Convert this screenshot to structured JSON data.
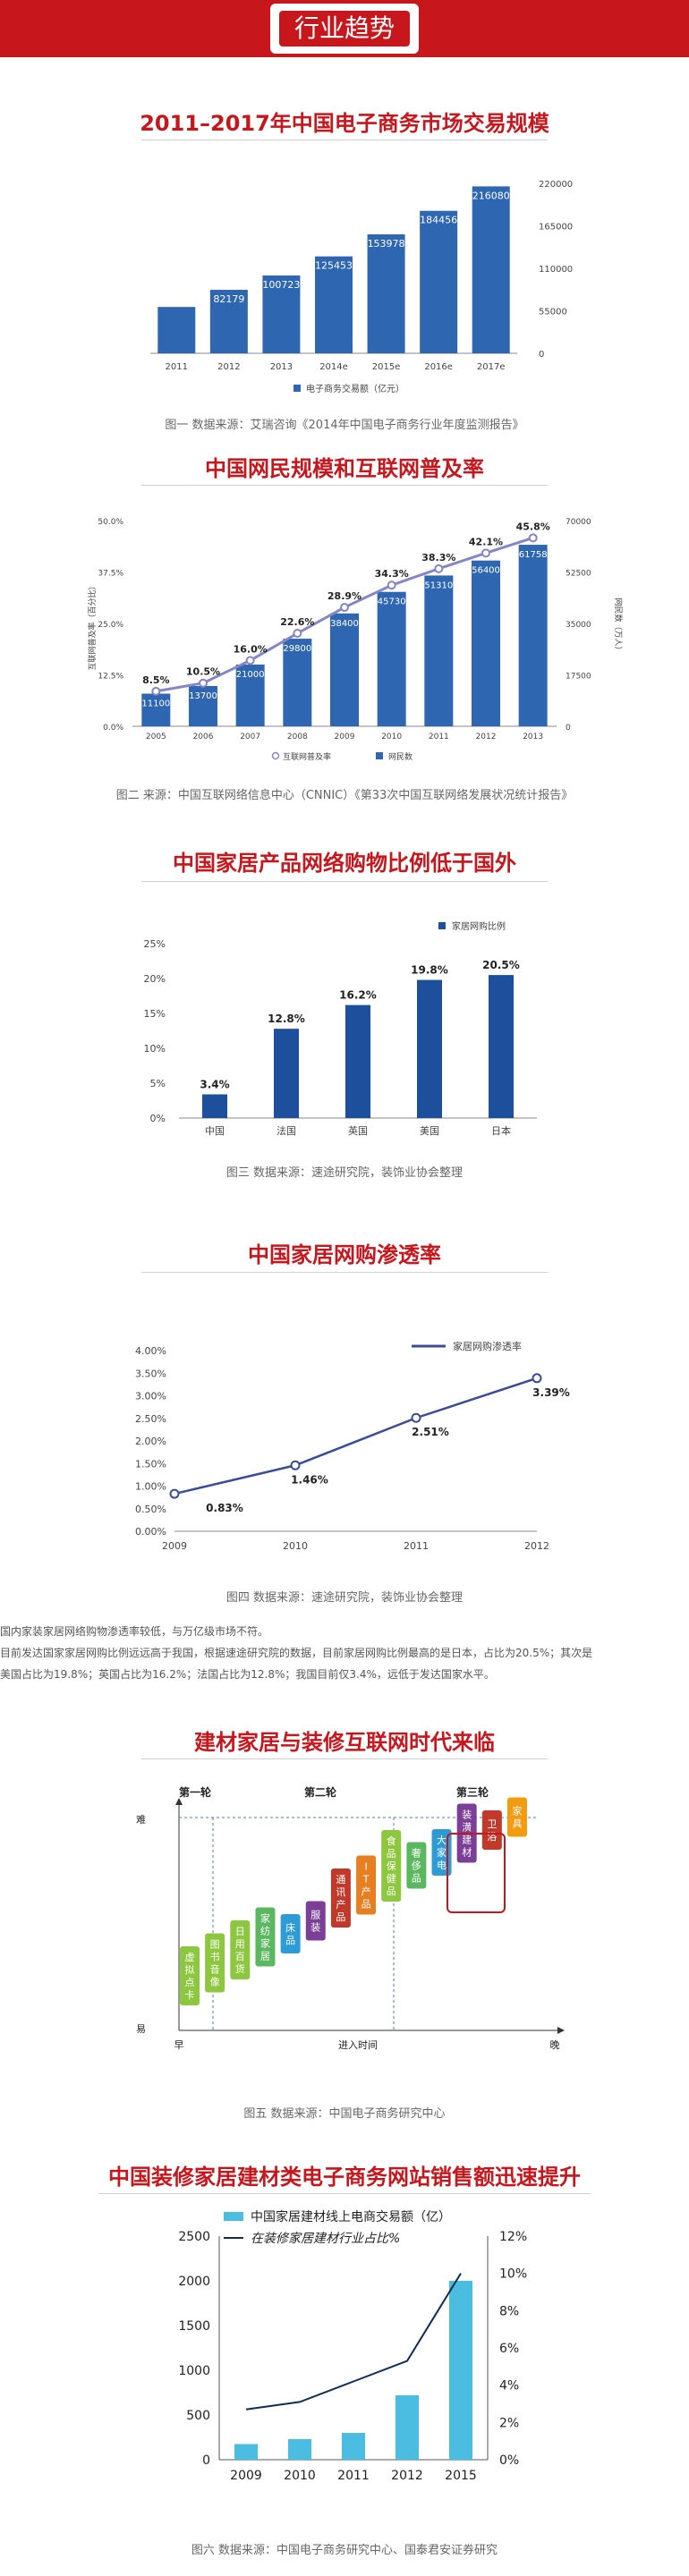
{
  "header": {
    "title": "行业趋势"
  },
  "sections": [
    {
      "title": "2011–2017年中国电子商务市场交易规模",
      "caption": "图一  数据来源：艾瑞咨询《2014年中国电子商务行业年度监测报告》"
    },
    {
      "title": "中国网民规模和互联网普及率",
      "caption": "图二  来源：中国互联网络信息中心（CNNIC）《第33次中国互联网络发展状况统计报告》"
    },
    {
      "title": "中国家居产品网络购物比例低于国外",
      "caption": "图三  数据来源：速途研究院，装饰业协会整理"
    },
    {
      "title": "中国家居网购渗透率",
      "caption": "图四  数据来源：速途研究院，装饰业协会整理"
    },
    {
      "title": "建材家居与装修互联网时代来临",
      "caption": "图五  数据来源：中国电子商务研究中心"
    },
    {
      "title": "中国装修家居建材类电子商务网站销售额迅速提升",
      "caption": "图六  数据来源：中国电子商务研究中心、国泰君安证券研究"
    }
  ],
  "paragraphs": [
    "国内家装家居网络购物渗透率较低，与万亿级市场不符。",
    "目前发达国家家居网购比例远远高于我国，根据速途研究院的数据，目前家居网购比例最高的是日本，占比为20.5%；其次是",
    "美国占比为19.8%；英国占比为16.2%；法国占比为12.8%；我国目前仅3.4%，远低于发达国家水平。"
  ],
  "chart_data": [
    {
      "type": "bar",
      "categories": [
        "2011",
        "2012",
        "2013",
        "2014e",
        "2015e",
        "2016e",
        "2017e"
      ],
      "values": [
        60000,
        82179,
        100723,
        125453,
        153978,
        184456,
        216080
      ],
      "data_labels": [
        "",
        "82179",
        "100723",
        "125453",
        "153978",
        "184456",
        "216080"
      ],
      "ylim": [
        0,
        220000
      ],
      "yticks": [
        "220000",
        "165000",
        "110000",
        "55000",
        "0"
      ],
      "legend": "电子商务交易额（亿元）",
      "color": "#2f66b1"
    },
    {
      "type": "bar",
      "categories": [
        "2005",
        "2006",
        "2007",
        "2008",
        "2009",
        "2010",
        "2011",
        "2012",
        "2013"
      ],
      "series": [
        {
          "name": "网民数",
          "values": [
            11100,
            13700,
            21000,
            29800,
            38400,
            45730,
            51310,
            56400,
            61758
          ],
          "data_labels": [
            "11100",
            "13700",
            "21000",
            "29800",
            "38400",
            "45730",
            "51310",
            "56400",
            "61758"
          ],
          "color": "#2f66b1"
        },
        {
          "name": "互联网普及率",
          "values": [
            8.5,
            10.5,
            16.0,
            22.6,
            28.9,
            34.3,
            38.3,
            42.1,
            45.8
          ],
          "data_labels": [
            "8.5%",
            "10.5%",
            "16.0%",
            "22.6%",
            "28.9%",
            "34.3%",
            "38.3%",
            "42.1%",
            "45.8%"
          ],
          "color": "#8585c9"
        }
      ],
      "y_left_label": "互联网普及率（百分比）",
      "y_left_ticks": [
        "50.0%",
        "37.5%",
        "25.0%",
        "12.5%",
        "0.0%"
      ],
      "y_right_label": "网民数（万人）",
      "y_right_ticks": [
        "70000",
        "52500",
        "35000",
        "17500",
        "0"
      ],
      "y_left_lim": [
        0,
        50
      ],
      "y_right_lim": [
        0,
        70000
      ]
    },
    {
      "type": "bar",
      "categories": [
        "中国",
        "法国",
        "英国",
        "美国",
        "日本"
      ],
      "values": [
        3.4,
        12.8,
        16.2,
        19.8,
        20.5
      ],
      "data_labels": [
        "3.4%",
        "12.8%",
        "16.2%",
        "19.8%",
        "20.5%"
      ],
      "ylim": [
        0,
        25
      ],
      "yticks": [
        "25%",
        "20%",
        "15%",
        "10%",
        "5%",
        "0%"
      ],
      "legend": "家居网购比例",
      "color": "#1e4f9c"
    },
    {
      "type": "line",
      "x": [
        "2009",
        "2010",
        "2011",
        "2012"
      ],
      "values": [
        0.83,
        1.46,
        2.51,
        3.39
      ],
      "data_labels": [
        "0.83%",
        "1.46%",
        "2.51%",
        "3.39%"
      ],
      "ylim": [
        0,
        4
      ],
      "yticks": [
        "4.00%",
        "3.50%",
        "3.00%",
        "2.50%",
        "2.00%",
        "1.50%",
        "1.00%",
        "0.50%",
        "0.00%"
      ],
      "legend": "家居网购渗透率",
      "color": "#3b4a9c"
    },
    {
      "type": "diagram",
      "phases": [
        "第一轮",
        "第二轮",
        "第三轮"
      ],
      "y_top": "难",
      "y_bottom": "易",
      "x_start": "早",
      "x_mid": "进入时间",
      "x_end": "晚",
      "items": [
        {
          "label": "虚拟点卡",
          "level": 1,
          "color": "#8dc63f"
        },
        {
          "label": "图书音像",
          "level": 2,
          "color": "#8dc63f"
        },
        {
          "label": "日用百货",
          "level": 3,
          "color": "#8dc63f"
        },
        {
          "label": "家纺家居",
          "level": 4,
          "color": "#5cb860"
        },
        {
          "label": "床品",
          "level": 5,
          "color": "#2e9bd6"
        },
        {
          "label": "服装",
          "level": 6,
          "color": "#7b3f98"
        },
        {
          "label": "通讯产品",
          "level": 7,
          "color": "#c0392b"
        },
        {
          "label": "IT产品",
          "level": 8,
          "color": "#e67e22"
        },
        {
          "label": "食品保健品",
          "level": 9,
          "color": "#8dc63f"
        },
        {
          "label": "奢侈品",
          "level": 10,
          "color": "#5cb860"
        },
        {
          "label": "大家电",
          "level": 11,
          "color": "#2e9bd6"
        },
        {
          "label": "装潢建材",
          "level": 12,
          "color": "#7b3f98"
        },
        {
          "label": "卫浴",
          "level": 13,
          "color": "#c0392b"
        },
        {
          "label": "家具",
          "level": 14,
          "color": "#f39c12"
        }
      ]
    },
    {
      "type": "bar",
      "categories": [
        "2009",
        "2010",
        "2011",
        "2012",
        "2015"
      ],
      "series": [
        {
          "name": "中国家居建材线上电商交易额（亿）",
          "values": [
            175,
            230,
            300,
            720,
            2000
          ],
          "color": "#4bbde0"
        },
        {
          "name": "在装修家居建材行业占比%",
          "values": [
            2.7,
            3.1,
            4.2,
            5.3,
            10.0
          ],
          "color": "#102c57"
        }
      ],
      "y_left_ticks": [
        "2500",
        "2000",
        "1500",
        "1000",
        "500",
        "0"
      ],
      "y_right_ticks": [
        "12%",
        "10%",
        "8%",
        "6%",
        "4%",
        "2%",
        "0%"
      ],
      "y_left_lim": [
        0,
        2500
      ],
      "y_right_lim": [
        0,
        12
      ]
    }
  ]
}
